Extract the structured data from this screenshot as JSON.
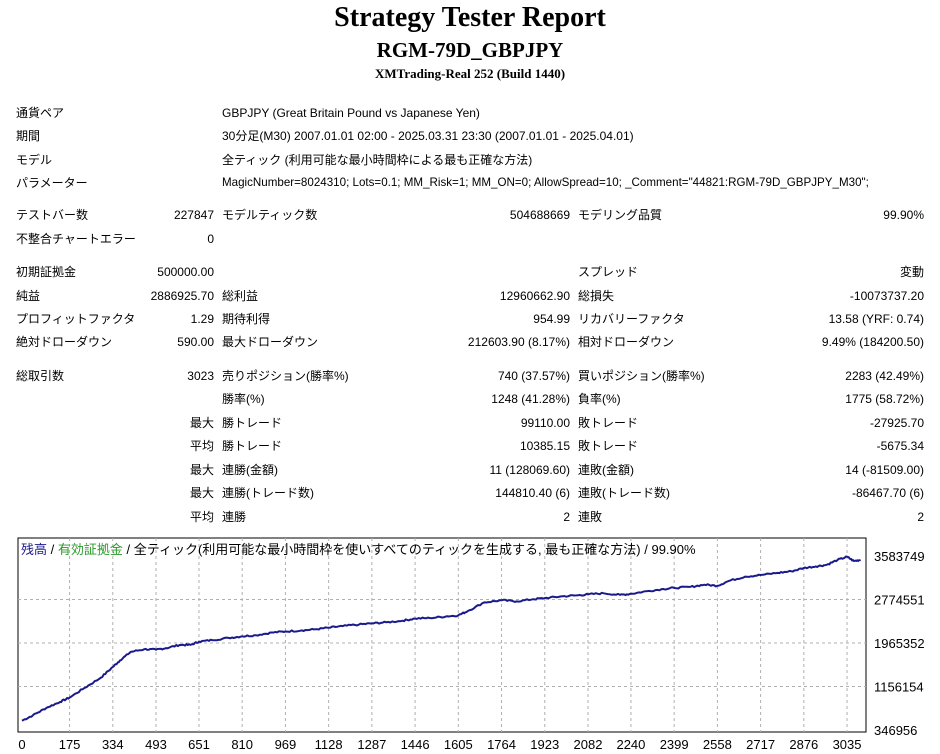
{
  "report": {
    "title": "Strategy Tester Report",
    "subtitle": "RGM-79D_GBPJPY",
    "server": "XMTrading-Real 252 (Build 1440)"
  },
  "info": {
    "pair_label": "通貨ペア",
    "pair_value": "GBPJPY (Great Britain Pound vs Japanese Yen)",
    "period_label": "期間",
    "period_value": "30分足(M30) 2007.01.01 02:00 - 2025.03.31 23:30 (2007.01.01 - 2025.04.01)",
    "model_label": "モデル",
    "model_value": "全ティック (利用可能な最小時間枠による最も正確な方法)",
    "params_label": "パラメーター",
    "params_value": "MagicNumber=8024310; Lots=0.1; MM_Risk=1; MM_ON=0; AllowSpread=10; _Comment=\"44821:RGM-79D_GBPJPY_M30\";"
  },
  "stats": {
    "bars_label": "テストバー数",
    "bars_value": "227847",
    "ticks_label": "モデルティック数",
    "ticks_value": "504688669",
    "quality_label": "モデリング品質",
    "quality_value": "99.90%",
    "mismatch_label": "不整合チャートエラー",
    "mismatch_value": "0",
    "deposit_label": "初期証拠金",
    "deposit_value": "500000.00",
    "spread_label": "スプレッド",
    "spread_value": "変動",
    "net_label": "純益",
    "net_value": "2886925.70",
    "gross_profit_label": "総利益",
    "gross_profit_value": "12960662.90",
    "gross_loss_label": "総損失",
    "gross_loss_value": "-10073737.20",
    "pf_label": "プロフィットファクタ",
    "pf_value": "1.29",
    "expected_label": "期待利得",
    "expected_value": "954.99",
    "recovery_label": "リカバリーファクタ",
    "recovery_value": "13.58 (YRF: 0.74)",
    "abs_dd_label": "絶対ドローダウン",
    "abs_dd_value": "590.00",
    "max_dd_label": "最大ドローダウン",
    "max_dd_value": "212603.90 (8.17%)",
    "rel_dd_label": "相対ドローダウン",
    "rel_dd_value": "9.49% (184200.50)",
    "trades_label": "総取引数",
    "trades_value": "3023",
    "short_label": "売りポジション(勝率%)",
    "short_value": "740 (37.57%)",
    "long_label": "買いポジション(勝率%)",
    "long_value": "2283 (42.49%)",
    "win_rate_label": "勝率(%)",
    "win_rate_value": "1248 (41.28%)",
    "loss_rate_label": "負率(%)",
    "loss_rate_value": "1775 (58.72%)",
    "max_word": "最大",
    "avg_word": "平均",
    "largest_win_label": "勝トレード",
    "largest_win_value": "99110.00",
    "largest_loss_label": "敗トレード",
    "largest_loss_value": "-27925.70",
    "avg_win_label": "勝トレード",
    "avg_win_value": "10385.15",
    "avg_loss_label": "敗トレード",
    "avg_loss_value": "-5675.34",
    "cons_wins_amt_label": "連勝(金額)",
    "cons_wins_amt_value": "11 (128069.60)",
    "cons_losses_amt_label": "連敗(金額)",
    "cons_losses_amt_value": "14 (-81509.00)",
    "cons_wins_cnt_label": "連勝(トレード数)",
    "cons_wins_cnt_value": "144810.40 (6)",
    "cons_losses_cnt_label": "連敗(トレード数)",
    "cons_losses_cnt_value": "-86467.70 (6)",
    "avg_cons_wins_label": "連勝",
    "avg_cons_wins_value": "2",
    "avg_cons_losses_label": "連敗",
    "avg_cons_losses_value": "2"
  },
  "chart_data": {
    "type": "line",
    "legend_balance": "残高",
    "legend_equity": "有効証拠金",
    "legend_rest": "全ティック(利用可能な最小時間枠を使いすべてのティックを生成する, 最も正確な方法)",
    "legend_quality": "99.90%",
    "legend_sep": " / ",
    "series_color": "#1a1a8c",
    "grid": true,
    "xlim": [
      0,
      3090
    ],
    "ylim": [
      346956,
      3583749
    ],
    "x_ticks": [
      "0",
      "175",
      "334",
      "493",
      "651",
      "810",
      "969",
      "1128",
      "1287",
      "1446",
      "1605",
      "1764",
      "1923",
      "2082",
      "2240",
      "2399",
      "2558",
      "2717",
      "2876",
      "3035"
    ],
    "y_ticks": [
      "3583749",
      "2774551",
      "1965352",
      "1156154",
      "346956"
    ],
    "series": [
      {
        "x": [
          0,
          40,
          90,
          140,
          175,
          230,
          290,
          334,
          360,
          400,
          450,
          493,
          530,
          580,
          620,
          651,
          700,
          760,
          810,
          860,
          920,
          969,
          1030,
          1080,
          1128,
          1180,
          1240,
          1287,
          1340,
          1400,
          1446,
          1500,
          1560,
          1605,
          1640,
          1700,
          1764,
          1820,
          1880,
          1923,
          1980,
          2040,
          2082,
          2140,
          2200,
          2240,
          2300,
          2360,
          2399,
          2460,
          2510,
          2558,
          2600,
          2660,
          2717,
          2780,
          2830,
          2876,
          2920,
          2960,
          3000,
          3035,
          3060,
          3085
        ],
        "y": [
          520000,
          620000,
          760000,
          870000,
          950000,
          1130000,
          1320000,
          1520000,
          1640000,
          1800000,
          1850000,
          1840000,
          1870000,
          1930000,
          1930000,
          1990000,
          2020000,
          2060000,
          2090000,
          2110000,
          2160000,
          2180000,
          2200000,
          2220000,
          2250000,
          2280000,
          2310000,
          2330000,
          2350000,
          2380000,
          2420000,
          2430000,
          2460000,
          2480000,
          2560000,
          2720000,
          2760000,
          2740000,
          2780000,
          2800000,
          2830000,
          2850000,
          2870000,
          2890000,
          2860000,
          2880000,
          2930000,
          2970000,
          2990000,
          3010000,
          3050000,
          3030000,
          3120000,
          3200000,
          3230000,
          3270000,
          3300000,
          3360000,
          3390000,
          3420000,
          3510000,
          3570000,
          3490000,
          3510000
        ]
      }
    ]
  }
}
